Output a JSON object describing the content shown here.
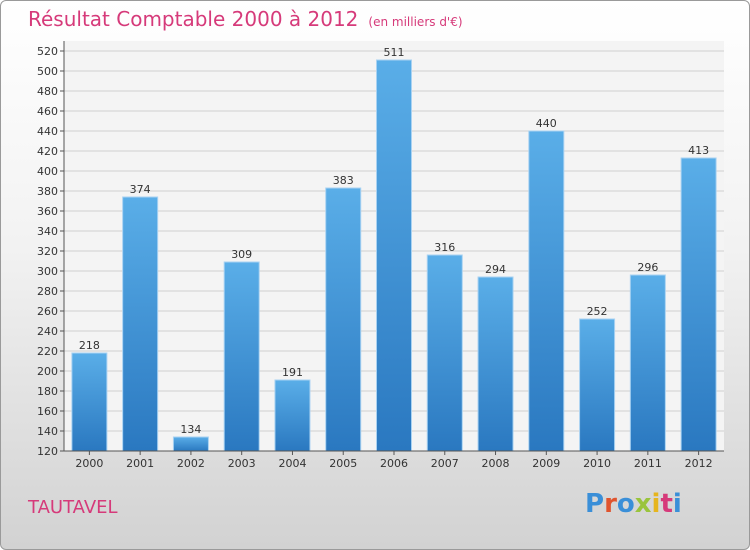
{
  "header": {
    "title": "Résultat Comptable 2000 à 2012",
    "subtitle": "(en milliers d'€)"
  },
  "footer": {
    "place": "TAUTAVEL",
    "logo": "Proxiti",
    "logo_colors": [
      "#3a8fd8",
      "#e0542e",
      "#3a8fd8",
      "#9ac43c",
      "#e6b51e",
      "#d63a7a",
      "#3a8fd8"
    ]
  },
  "chart_data": {
    "type": "bar",
    "title": "Résultat Comptable 2000 à 2012",
    "subtitle": "(en milliers d'€)",
    "categories": [
      "2000",
      "2001",
      "2002",
      "2003",
      "2004",
      "2005",
      "2006",
      "2007",
      "2008",
      "2009",
      "2010",
      "2011",
      "2012"
    ],
    "values": [
      218,
      374,
      134,
      309,
      191,
      383,
      511,
      316,
      294,
      440,
      252,
      296,
      413
    ],
    "ylim": [
      120,
      520
    ],
    "yticks": [
      120,
      140,
      160,
      180,
      200,
      220,
      240,
      260,
      280,
      300,
      320,
      340,
      360,
      380,
      400,
      420,
      440,
      460,
      480,
      500,
      520
    ],
    "grid": true,
    "bar_color": "#3c93d8"
  }
}
